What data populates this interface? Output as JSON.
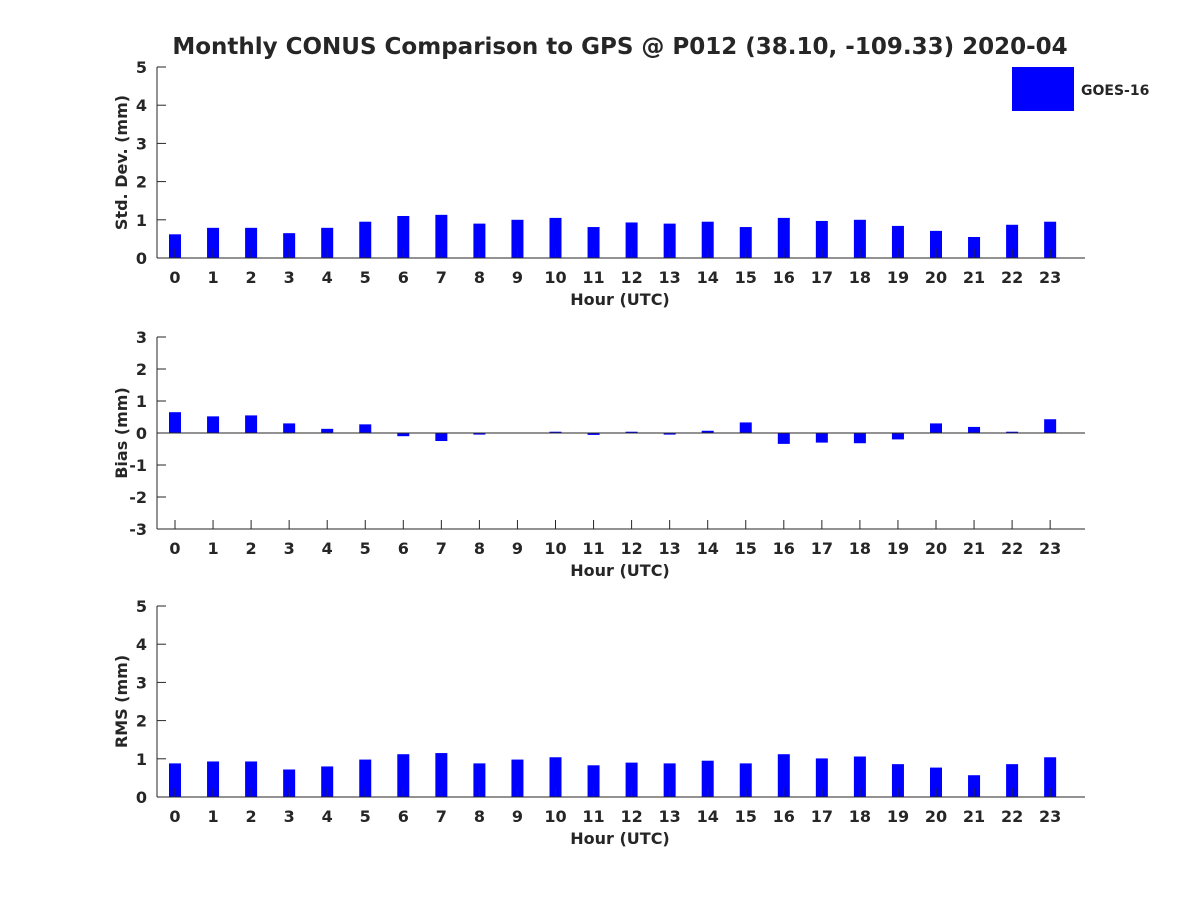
{
  "chart_data": {
    "type": "bar",
    "title": "Monthly CONUS Comparison to GPS @ P012 (38.10, -109.33) 2020-04",
    "legend": {
      "label": "GOES-16",
      "placement": "top-right"
    },
    "series_color": "#0000ff",
    "x": [
      0,
      1,
      2,
      3,
      4,
      5,
      6,
      7,
      8,
      9,
      10,
      11,
      12,
      13,
      14,
      15,
      16,
      17,
      18,
      19,
      20,
      21,
      22,
      23
    ],
    "panels": [
      {
        "ylabel": "Std. Dev. (mm)",
        "xlabel": "Hour (UTC)",
        "ylim": [
          0,
          5
        ],
        "yticks": [
          0,
          1,
          2,
          3,
          4,
          5
        ],
        "values": [
          0.62,
          0.79,
          0.79,
          0.65,
          0.79,
          0.95,
          1.1,
          1.13,
          0.9,
          1.0,
          1.05,
          0.81,
          0.93,
          0.9,
          0.95,
          0.81,
          1.05,
          0.97,
          1.0,
          0.84,
          0.71,
          0.55,
          0.87,
          0.95
        ]
      },
      {
        "ylabel": "Bias (mm)",
        "xlabel": "Hour (UTC)",
        "ylim": [
          -3,
          3
        ],
        "yticks": [
          -3,
          -2,
          -1,
          0,
          1,
          2,
          3
        ],
        "values": [
          0.65,
          0.52,
          0.55,
          0.3,
          0.13,
          0.27,
          -0.1,
          -0.25,
          -0.05,
          0.0,
          0.04,
          -0.06,
          0.04,
          -0.05,
          0.07,
          0.33,
          -0.34,
          -0.3,
          -0.32,
          -0.2,
          0.3,
          0.19,
          0.04,
          0.43
        ]
      },
      {
        "ylabel": "RMS (mm)",
        "xlabel": "Hour (UTC)",
        "ylim": [
          0,
          5
        ],
        "yticks": [
          0,
          1,
          2,
          3,
          4,
          5
        ],
        "values": [
          0.88,
          0.93,
          0.93,
          0.72,
          0.8,
          0.98,
          1.12,
          1.15,
          0.88,
          0.98,
          1.04,
          0.83,
          0.9,
          0.88,
          0.95,
          0.88,
          1.12,
          1.01,
          1.06,
          0.86,
          0.77,
          0.57,
          0.86,
          1.04
        ]
      }
    ]
  }
}
